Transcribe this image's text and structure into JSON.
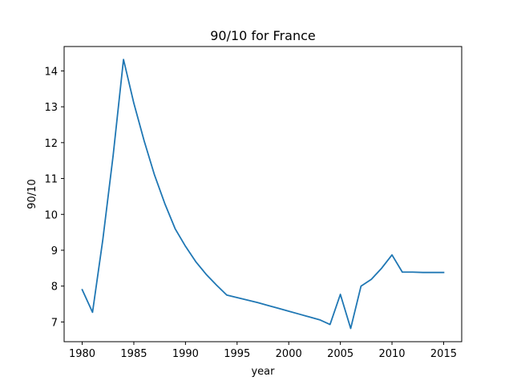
{
  "chart_data": {
    "type": "line",
    "title": "90/10 for France",
    "xlabel": "year",
    "ylabel": "90/10",
    "xlim": [
      1978.25,
      2016.75
    ],
    "ylim": [
      6.45,
      14.68
    ],
    "xticks": [
      1980,
      1985,
      1990,
      1995,
      2000,
      2005,
      2010,
      2015
    ],
    "yticks": [
      7,
      8,
      9,
      10,
      11,
      12,
      13,
      14
    ],
    "grid": false,
    "line_color": "#1f77b4",
    "series": [
      {
        "x": [
          1980,
          1981,
          1982,
          1983,
          1984,
          1985,
          1986,
          1987,
          1988,
          1989,
          1990,
          1991,
          1992,
          1993,
          1994,
          1995,
          1996,
          1997,
          1998,
          1999,
          2000,
          2001,
          2002,
          2003,
          2004,
          2005,
          2006,
          2007,
          2008,
          2009,
          2010,
          2011,
          2012,
          2013,
          2014,
          2015
        ],
        "y": [
          7.9,
          7.27,
          9.3,
          11.65,
          14.32,
          13.1,
          12.05,
          11.1,
          10.3,
          9.6,
          9.11,
          8.68,
          8.33,
          8.03,
          7.75,
          7.68,
          7.61,
          7.54,
          7.46,
          7.38,
          7.3,
          7.22,
          7.14,
          7.06,
          6.93,
          7.77,
          6.82,
          8.0,
          8.19,
          8.5,
          8.87,
          8.39,
          8.39,
          8.38,
          8.38,
          8.38
        ]
      }
    ]
  }
}
